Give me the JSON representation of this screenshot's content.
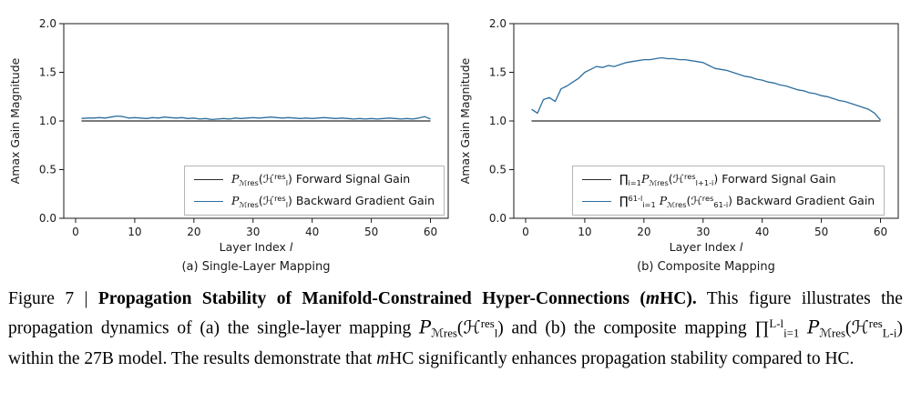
{
  "caption_segments": [
    {
      "t": "Figure 7 | "
    },
    {
      "t": "Propagation Stability of Manifold-Constrained Hyper-Connections (",
      "s": "b"
    },
    {
      "t": "m",
      "s": "bi"
    },
    {
      "t": "HC).",
      "s": "b"
    },
    {
      "t": " This figure illustrates the propagation dynamics of (a) the single-layer mapping "
    },
    {
      "t": "P",
      "s": "cal"
    },
    {
      "t": "ℳres",
      "s": "sub"
    },
    {
      "t": "("
    },
    {
      "t": "ℋ"
    },
    {
      "t": "res",
      "s": "sup"
    },
    {
      "t": "l",
      "s": "sub"
    },
    {
      "t": ") and (b) the composite mapping "
    },
    {
      "t": "∏"
    },
    {
      "t": "L-l",
      "s": "sup"
    },
    {
      "t": "i=1",
      "s": "sub"
    },
    {
      "t": " "
    },
    {
      "t": "P",
      "s": "cal"
    },
    {
      "t": "ℳres",
      "s": "sub"
    },
    {
      "t": "("
    },
    {
      "t": "ℋ"
    },
    {
      "t": "res",
      "s": "sup"
    },
    {
      "t": "L-i",
      "s": "sub"
    },
    {
      "t": ") within the 27B model. The results demonstrate that "
    },
    {
      "t": "m",
      "s": "i"
    },
    {
      "t": "HC significantly enhances propagation stability compared to HC."
    }
  ],
  "chart_data": [
    {
      "type": "line",
      "caption": "(a) Single-Layer Mapping",
      "ylabel": "Amax Gain Magnitude",
      "xlabel_segments": [
        {
          "t": "Layer Index "
        },
        {
          "t": "l",
          "s": "i"
        }
      ],
      "xlim": [
        -2,
        63
      ],
      "ylim": [
        0,
        2.0
      ],
      "xticks": [
        0,
        10,
        20,
        30,
        40,
        50,
        60
      ],
      "yticks": [
        "0.0",
        "0.5",
        "1.0",
        "1.5",
        "2.0"
      ],
      "grid": false,
      "legend_position": "lower right inside axes",
      "series": [
        {
          "id": "forward-signal-gain-line",
          "label_segments": [
            {
              "t": "P",
              "s": "cal"
            },
            {
              "t": "ℳres",
              "s": "sub"
            },
            {
              "t": "("
            },
            {
              "t": "ℋ"
            },
            {
              "t": "res",
              "s": "sup"
            },
            {
              "t": "l",
              "s": "sub"
            },
            {
              "t": ")"
            },
            {
              "t": " Forward Signal Gain"
            }
          ],
          "color": "#2b2b2b",
          "width": 1.2,
          "x": [
            1,
            60
          ],
          "y": [
            1.0,
            1.0
          ]
        },
        {
          "id": "backward-gradient-gain-line",
          "label_segments": [
            {
              "t": "P",
              "s": "cal"
            },
            {
              "t": "ℳres",
              "s": "sub"
            },
            {
              "t": "("
            },
            {
              "t": "ℋ"
            },
            {
              "t": "res",
              "s": "sup"
            },
            {
              "t": "l",
              "s": "sub"
            },
            {
              "t": ")"
            },
            {
              "t": " Backward Gradient Gain"
            }
          ],
          "color": "#2d6e9e",
          "width": 1.3,
          "x_start": 1,
          "y": [
            1.025,
            1.03,
            1.03,
            1.035,
            1.03,
            1.04,
            1.05,
            1.045,
            1.03,
            1.035,
            1.03,
            1.025,
            1.035,
            1.03,
            1.04,
            1.035,
            1.03,
            1.035,
            1.025,
            1.03,
            1.02,
            1.025,
            1.015,
            1.02,
            1.025,
            1.02,
            1.03,
            1.025,
            1.03,
            1.035,
            1.03,
            1.035,
            1.04,
            1.035,
            1.03,
            1.035,
            1.03,
            1.025,
            1.03,
            1.025,
            1.03,
            1.035,
            1.03,
            1.025,
            1.03,
            1.025,
            1.02,
            1.025,
            1.02,
            1.025,
            1.02,
            1.025,
            1.03,
            1.025,
            1.02,
            1.025,
            1.02,
            1.03,
            1.045,
            1.02
          ]
        }
      ]
    },
    {
      "type": "line",
      "caption": "(b) Composite Mapping",
      "ylabel": "Amax Gain Magnitude",
      "xlabel_segments": [
        {
          "t": "Layer Index "
        },
        {
          "t": "l",
          "s": "i"
        }
      ],
      "xlim": [
        -2,
        63
      ],
      "ylim": [
        0,
        2.0
      ],
      "xticks": [
        0,
        10,
        20,
        30,
        40,
        50,
        60
      ],
      "yticks": [
        "0.0",
        "0.5",
        "1.0",
        "1.5",
        "2.0"
      ],
      "grid": false,
      "legend_position": "lower right inside axes",
      "series": [
        {
          "id": "forward-signal-gain-line",
          "label_segments": [
            {
              "t": "∏"
            },
            {
              "t": "i=1",
              "s": "sub"
            },
            {
              "t": "P",
              "s": "cal"
            },
            {
              "t": "ℳres",
              "s": "sub"
            },
            {
              "t": "("
            },
            {
              "t": "ℋ"
            },
            {
              "t": "res",
              "s": "sup"
            },
            {
              "t": "l+1-i",
              "s": "sub"
            },
            {
              "t": ")"
            },
            {
              "t": " Forward Signal Gain"
            }
          ],
          "color": "#2b2b2b",
          "width": 1.2,
          "x": [
            1,
            60
          ],
          "y": [
            1.0,
            1.0
          ]
        },
        {
          "id": "backward-gradient-gain-line",
          "label_segments": [
            {
              "t": "∏"
            },
            {
              "t": "61-l",
              "s": "sup"
            },
            {
              "t": "i=1",
              "s": "sub"
            },
            {
              "t": " "
            },
            {
              "t": "P",
              "s": "cal"
            },
            {
              "t": "ℳres",
              "s": "sub"
            },
            {
              "t": "("
            },
            {
              "t": "ℋ"
            },
            {
              "t": "res",
              "s": "sup"
            },
            {
              "t": "61-i",
              "s": "sub"
            },
            {
              "t": ")"
            },
            {
              "t": " Backward Gradient Gain"
            }
          ],
          "color": "#2d6e9e",
          "width": 1.3,
          "x_start": 1,
          "y": [
            1.12,
            1.08,
            1.22,
            1.24,
            1.2,
            1.33,
            1.36,
            1.4,
            1.44,
            1.5,
            1.53,
            1.56,
            1.55,
            1.57,
            1.56,
            1.58,
            1.6,
            1.61,
            1.62,
            1.63,
            1.63,
            1.64,
            1.65,
            1.64,
            1.64,
            1.63,
            1.63,
            1.62,
            1.61,
            1.6,
            1.57,
            1.54,
            1.53,
            1.52,
            1.5,
            1.48,
            1.46,
            1.45,
            1.43,
            1.42,
            1.4,
            1.39,
            1.37,
            1.36,
            1.34,
            1.32,
            1.31,
            1.29,
            1.28,
            1.26,
            1.25,
            1.23,
            1.21,
            1.2,
            1.18,
            1.16,
            1.14,
            1.12,
            1.08,
            1.01
          ]
        }
      ]
    }
  ]
}
